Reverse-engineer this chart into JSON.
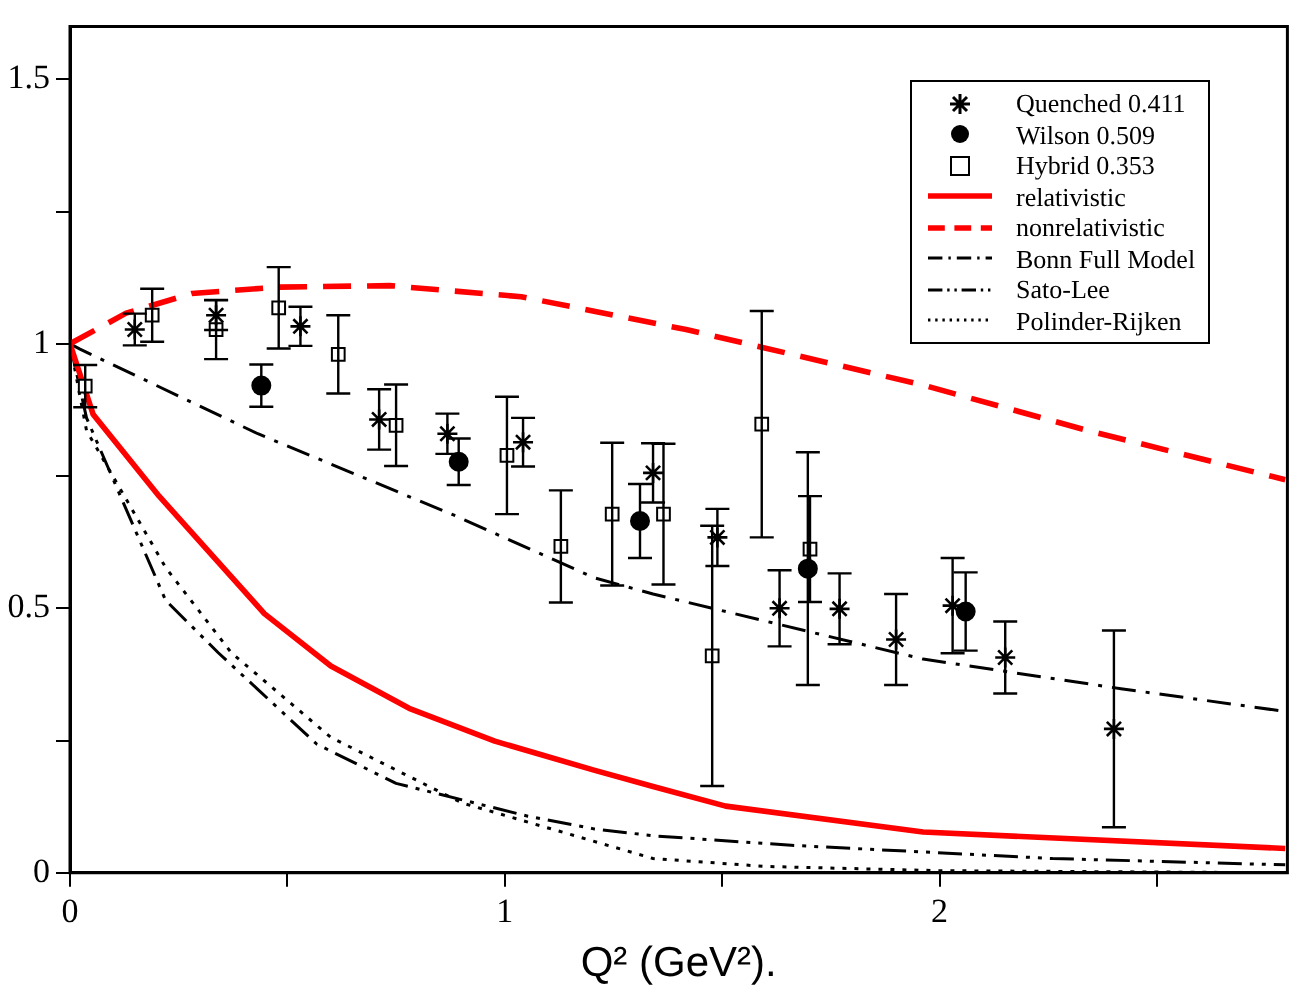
{
  "chart_data": {
    "type": "scatter",
    "xlabel": "Q² (GeV²).",
    "xlim": [
      0,
      2.8
    ],
    "ylim": [
      0,
      1.6
    ],
    "xticks": [
      0,
      {
        "value": 0.5,
        "label": null
      },
      1,
      {
        "value": 1.5,
        "label": null
      },
      2,
      {
        "value": 2.5,
        "label": null
      }
    ],
    "yticks": [
      0,
      {
        "value": 0.25,
        "label": null
      },
      0.5,
      {
        "value": 0.75,
        "label": null
      },
      1,
      {
        "value": 1.25,
        "label": null
      },
      1.5
    ],
    "grid": false,
    "legend": "top right",
    "series": [
      {
        "name": "Quenched 0.411",
        "type": "scatter",
        "marker": "cross",
        "color": "#000000",
        "x": [
          0.149,
          0.336,
          0.53,
          0.711,
          0.868,
          1.042,
          1.341,
          1.489,
          1.632,
          1.77,
          1.9,
          2.03,
          2.151,
          2.401
        ],
        "values": [
          1.027,
          1.054,
          1.033,
          0.857,
          0.83,
          0.814,
          0.756,
          0.634,
          0.5,
          0.499,
          0.441,
          0.505,
          0.407,
          0.272
        ],
        "errors": [
          0.03,
          0.028,
          0.037,
          0.057,
          0.038,
          0.046,
          0.056,
          0.054,
          0.072,
          0.067,
          0.086,
          0.09,
          0.068,
          0.186
        ]
      },
      {
        "name": "Wilson 0.509",
        "type": "scatter",
        "marker": "circle",
        "color": "#000000",
        "x": [
          0.44,
          0.894,
          1.311,
          1.697,
          2.06
        ],
        "values": [
          0.921,
          0.777,
          0.665,
          0.575,
          0.494
        ],
        "errors": [
          0.04,
          0.044,
          0.07,
          0.22,
          0.074
        ]
      },
      {
        "name": "Hybrid 0.353",
        "type": "scatter",
        "marker": "square",
        "color": "#000000",
        "x": [
          0.035,
          0.189,
          0.336,
          0.48,
          0.617,
          0.75,
          1.005,
          1.129,
          1.247,
          1.365,
          1.477,
          1.591,
          1.702
        ],
        "values": [
          0.92,
          1.054,
          1.027,
          1.068,
          0.98,
          0.846,
          0.789,
          0.617,
          0.678,
          0.678,
          0.41,
          0.848,
          0.612
        ],
        "errors": [
          0.04,
          0.05,
          0.056,
          0.077,
          0.074,
          0.077,
          0.111,
          0.106,
          0.135,
          0.133,
          0.246,
          0.214,
          0.1
        ]
      },
      {
        "name": "relativistic",
        "type": "line",
        "marker": "none",
        "line_style": "solid",
        "color": "#ff0000",
        "x": [
          0,
          0.053,
          0.205,
          0.447,
          0.6,
          0.78,
          0.977,
          1.205,
          1.341,
          1.508,
          1.962,
          2.795
        ],
        "values": [
          1,
          0.867,
          0.712,
          0.49,
          0.391,
          0.311,
          0.249,
          0.194,
          0.163,
          0.126,
          0.077,
          0.046
        ]
      },
      {
        "name": "nonrelativistic",
        "type": "line",
        "marker": "none",
        "line_style": "dashed",
        "color": "#ff0000",
        "x": [
          0,
          0.129,
          0.28,
          0.477,
          0.735,
          1.038,
          1.417,
          1.962,
          2.341,
          2.795
        ],
        "values": [
          1,
          1.058,
          1.095,
          1.107,
          1.11,
          1.089,
          1.027,
          0.922,
          0.836,
          0.743
        ]
      },
      {
        "name": "Bonn Full Model",
        "type": "line",
        "marker": "none",
        "line_style": "dashdot",
        "color": "#000000",
        "x": [
          0,
          0.023,
          0.432,
          0.886,
          1.205,
          1.341,
          1.962,
          2.417,
          2.795
        ],
        "values": [
          1,
          0.99,
          0.83,
          0.675,
          0.558,
          0.527,
          0.404,
          0.348,
          0.305
        ]
      },
      {
        "name": "Sato-Lee",
        "type": "line",
        "marker": "none",
        "line_style": "dashdotdot",
        "color": "#000000",
        "x": [
          0,
          0.038,
          0.22,
          0.341,
          0.568,
          0.75,
          1.053,
          1.205,
          1.341,
          1.659,
          2.26,
          2.795
        ],
        "values": [
          1,
          0.86,
          0.515,
          0.416,
          0.243,
          0.169,
          0.107,
          0.083,
          0.07,
          0.052,
          0.027,
          0.015
        ]
      },
      {
        "name": "Polinder-Rijken",
        "type": "line",
        "marker": "none",
        "line_style": "dotted",
        "color": "#000000",
        "x": [
          0,
          0.038,
          0.22,
          0.371,
          0.6,
          0.902,
          1.341,
          1.6,
          2.0,
          2.795
        ],
        "values": [
          1,
          0.836,
          0.577,
          0.416,
          0.256,
          0.132,
          0.027,
          0.012,
          0.004,
          0
        ]
      }
    ]
  }
}
